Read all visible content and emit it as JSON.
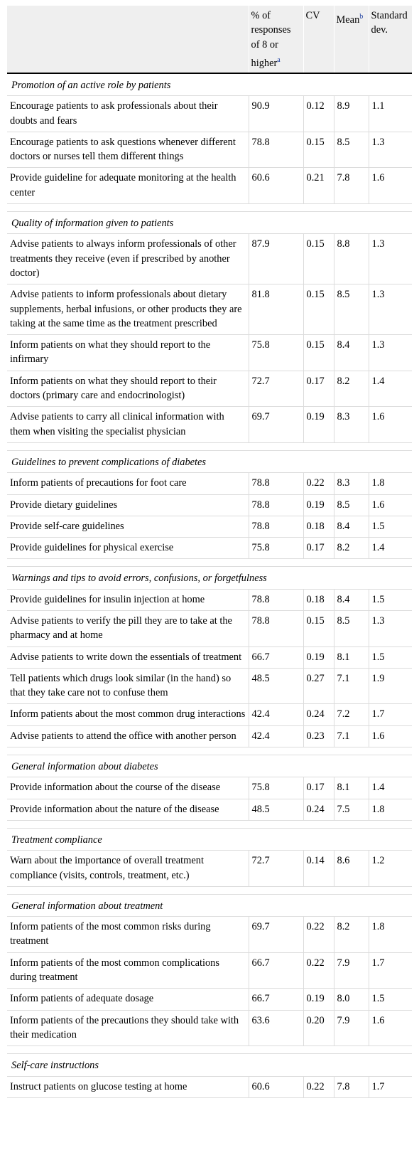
{
  "header": {
    "col_pct": "% of responses of 8 or higher",
    "col_pct_note": "a",
    "col_cv": "CV",
    "col_mean": "Mean",
    "col_mean_note": "b",
    "col_sd": "Standard dev."
  },
  "sections": [
    {
      "title": "Promotion of an active role by patients",
      "rows": [
        {
          "label": "Encourage patients to ask professionals about their doubts and fears",
          "pct": "90.9",
          "cv": "0.12",
          "mean": "8.9",
          "sd": "1.1"
        },
        {
          "label": "Encourage patients to ask questions whenever different doctors or nurses tell them different things",
          "pct": "78.8",
          "cv": "0.15",
          "mean": "8.5",
          "sd": "1.3"
        },
        {
          "label": "Provide guideline for adequate monitoring at the health center",
          "pct": "60.6",
          "cv": "0.21",
          "mean": "7.8",
          "sd": "1.6"
        }
      ]
    },
    {
      "title": "Quality of information given to patients",
      "rows": [
        {
          "label": "Advise patients to always inform professionals of other treatments they receive (even if prescribed by another doctor)",
          "pct": "87.9",
          "cv": "0.15",
          "mean": "8.8",
          "sd": "1.3"
        },
        {
          "label": "Advise patients to inform professionals about dietary supplements, herbal infusions, or other products they are taking at the same time as the treatment prescribed",
          "pct": "81.8",
          "cv": "0.15",
          "mean": "8.5",
          "sd": "1.3"
        },
        {
          "label": "Inform patients on what they should report to the infirmary",
          "pct": "75.8",
          "cv": "0.15",
          "mean": "8.4",
          "sd": "1.3"
        },
        {
          "label": "Inform patients on what they should report to their doctors (primary care and endocrinologist)",
          "pct": "72.7",
          "cv": "0.17",
          "mean": "8.2",
          "sd": "1.4"
        },
        {
          "label": "Advise patients to carry all clinical information with them when visiting the specialist physician",
          "pct": "69.7",
          "cv": "0.19",
          "mean": "8.3",
          "sd": "1.6"
        }
      ]
    },
    {
      "title": "Guidelines to prevent complications of diabetes",
      "rows": [
        {
          "label": "Inform patients of precautions for foot care",
          "pct": "78.8",
          "cv": "0.22",
          "mean": "8.3",
          "sd": "1.8"
        },
        {
          "label": "Provide dietary guidelines",
          "pct": "78.8",
          "cv": "0.19",
          "mean": "8.5",
          "sd": "1.6"
        },
        {
          "label": "Provide self-care guidelines",
          "pct": "78.8",
          "cv": "0.18",
          "mean": "8.4",
          "sd": "1.5"
        },
        {
          "label": "Provide guidelines for physical exercise",
          "pct": "75.8",
          "cv": "0.17",
          "mean": "8.2",
          "sd": "1.4"
        }
      ]
    },
    {
      "title": "Warnings and tips to avoid errors, confusions, or forgetfulness",
      "rows": [
        {
          "label": "Provide guidelines for insulin injection at home",
          "pct": "78.8",
          "cv": "0.18",
          "mean": "8.4",
          "sd": "1.5"
        },
        {
          "label": "Advise patients to verify the pill they are to take at the pharmacy and at home",
          "pct": "78.8",
          "cv": "0.15",
          "mean": "8.5",
          "sd": "1.3"
        },
        {
          "label": "Advise patients to write down the essentials of treatment",
          "pct": "66.7",
          "cv": "0.19",
          "mean": "8.1",
          "sd": "1.5"
        },
        {
          "label": "Tell patients which drugs look similar (in the hand) so that they take care not to confuse them",
          "pct": "48.5",
          "cv": "0.27",
          "mean": "7.1",
          "sd": "1.9"
        },
        {
          "label": "Inform patients about the most common drug interactions",
          "pct": "42.4",
          "cv": "0.24",
          "mean": "7.2",
          "sd": "1.7"
        },
        {
          "label": "Advise patients to attend the office with another person",
          "pct": "42.4",
          "cv": "0.23",
          "mean": "7.1",
          "sd": "1.6"
        }
      ]
    },
    {
      "title": "General information about diabetes",
      "rows": [
        {
          "label": "Provide information about the course of the disease",
          "pct": "75.8",
          "cv": "0.17",
          "mean": "8.1",
          "sd": "1.4"
        },
        {
          "label": "Provide information about the nature of the disease",
          "pct": "48.5",
          "cv": "0.24",
          "mean": "7.5",
          "sd": "1.8"
        }
      ]
    },
    {
      "title": "Treatment compliance",
      "rows": [
        {
          "label": "Warn about the importance of overall treatment compliance (visits, controls, treatment, etc.)",
          "pct": "72.7",
          "cv": "0.14",
          "mean": "8.6",
          "sd": "1.2"
        }
      ]
    },
    {
      "title": "General information about treatment",
      "rows": [
        {
          "label": "Inform patients of the most common risks during treatment",
          "pct": "69.7",
          "cv": "0.22",
          "mean": "8.2",
          "sd": "1.8"
        },
        {
          "label": "Inform patients of the most common complications during treatment",
          "pct": "66.7",
          "cv": "0.22",
          "mean": "7.9",
          "sd": "1.7"
        },
        {
          "label": "Inform patients of adequate dosage",
          "pct": "66.7",
          "cv": "0.19",
          "mean": "8.0",
          "sd": "1.5"
        },
        {
          "label": "Inform patients of the precautions they should take with their medication",
          "pct": "63.6",
          "cv": "0.20",
          "mean": "7.9",
          "sd": "1.6"
        }
      ]
    },
    {
      "title": "Self-care instructions",
      "rows": [
        {
          "label": "Instruct patients on glucose testing at home",
          "pct": "60.6",
          "cv": "0.22",
          "mean": "7.8",
          "sd": "1.7"
        }
      ]
    }
  ]
}
